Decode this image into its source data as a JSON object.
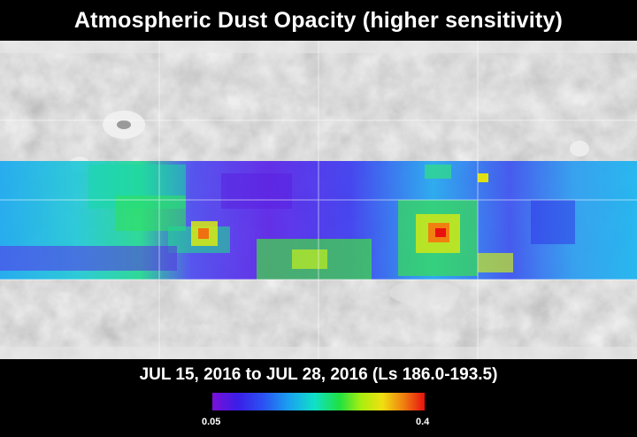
{
  "title": "Atmospheric Dust Opacity (higher sensitivity)",
  "subtitle": "JUL 15, 2016 to JUL 28, 2016 (Ls 186.0-193.5)",
  "colorbar": {
    "min_label": "0.05",
    "max_label": "0.4",
    "min": 0.05,
    "max": 0.4
  },
  "colors": {
    "background": "#000000",
    "low": "#7a10d8",
    "high": "#e81010"
  }
}
